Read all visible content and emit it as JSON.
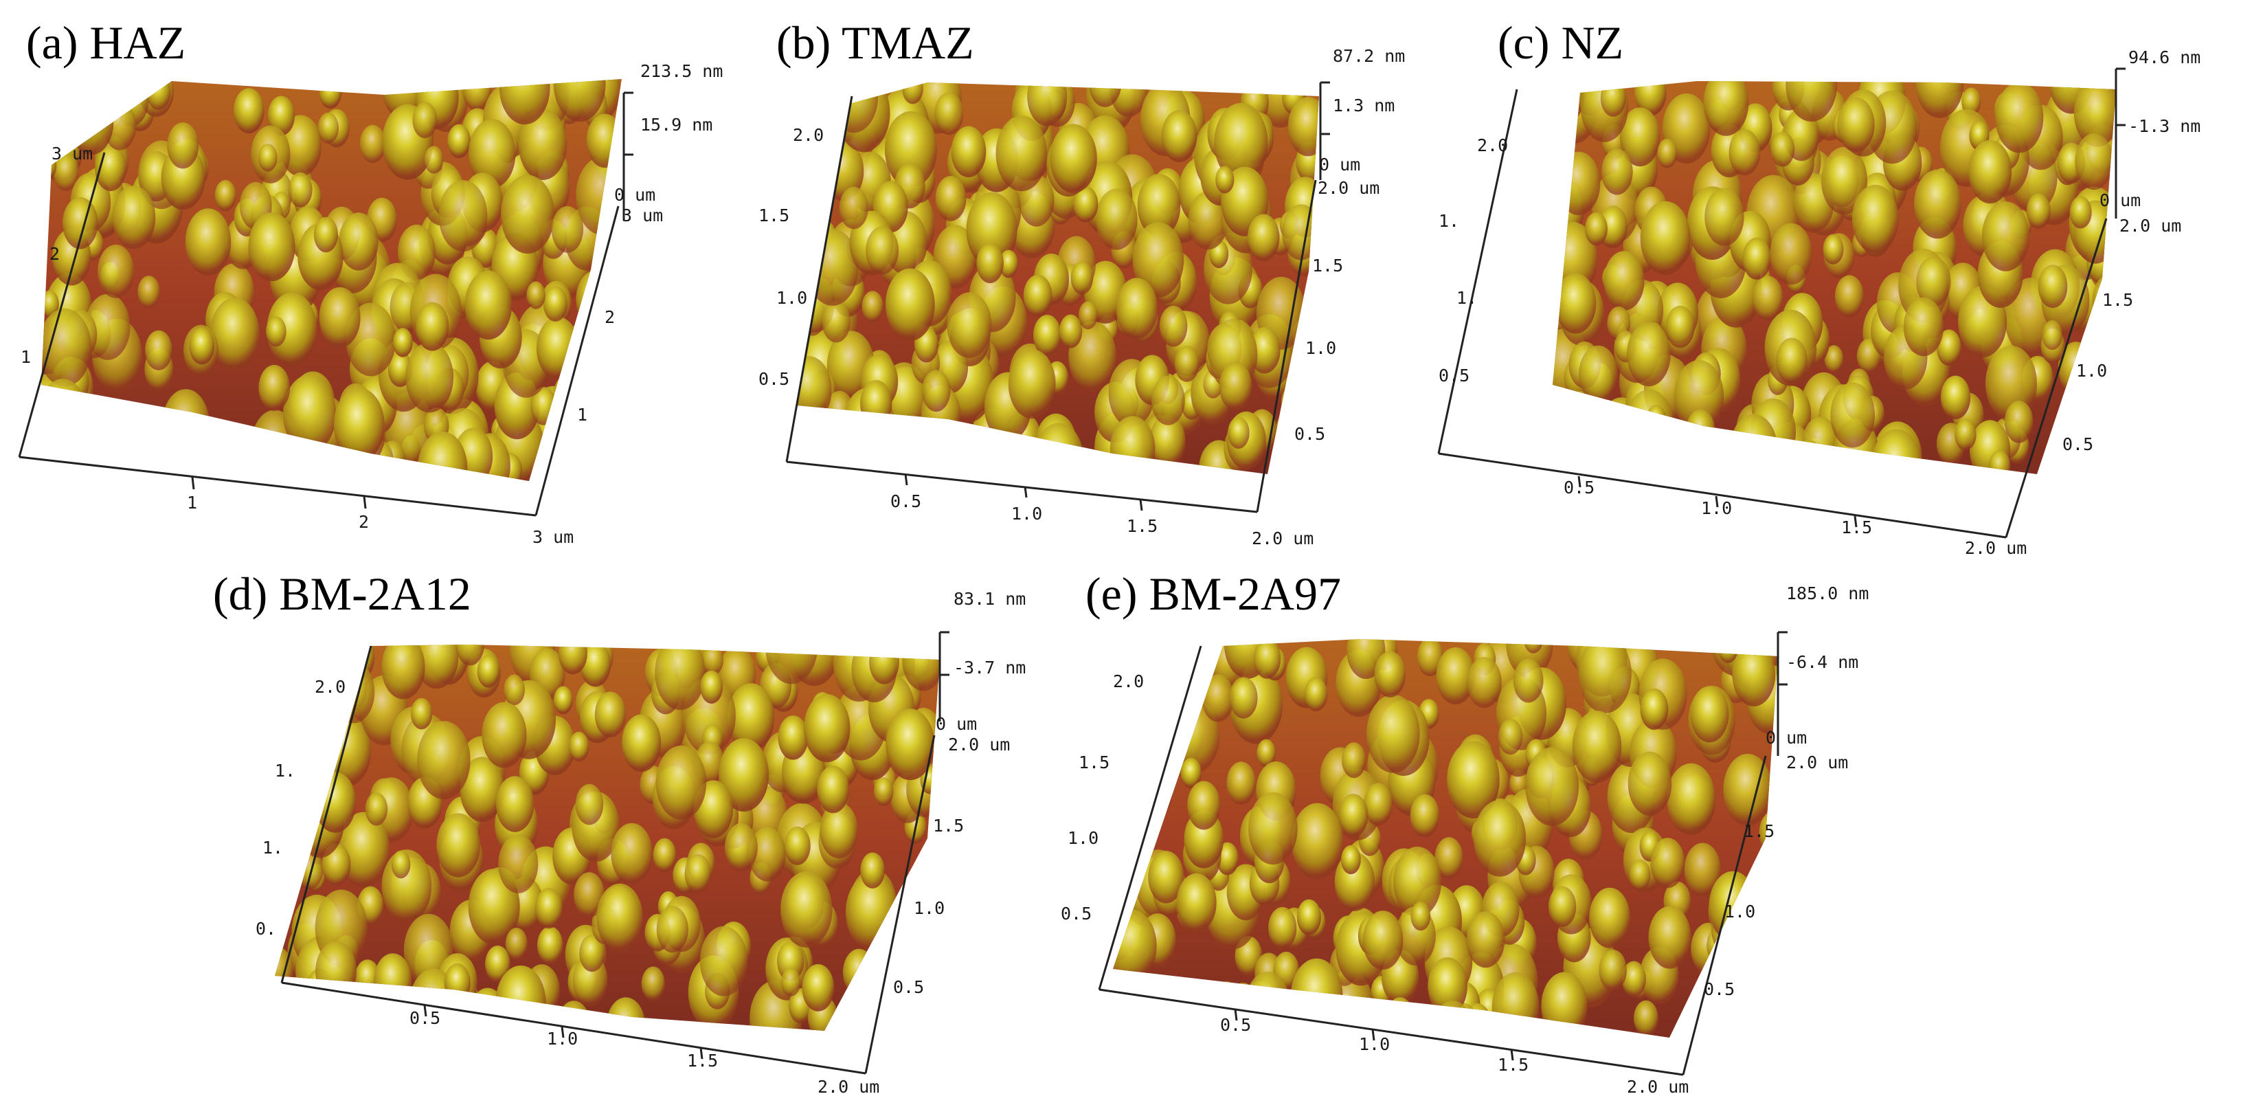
{
  "figure": {
    "panels": [
      {
        "id": "a",
        "label": "(a) HAZ",
        "z_max": "213.5 nm",
        "z_mid": "15.9 nm",
        "z_min": "0 um",
        "x_ticks": [
          "1",
          "2",
          "3 um"
        ],
        "y_ticks": [
          "1",
          "2",
          "3 um"
        ],
        "back_ticks": [
          "1",
          "2",
          "3 um"
        ]
      },
      {
        "id": "b",
        "label": "(b) TMAZ",
        "z_max": "87.2 nm",
        "z_mid": "1.3 nm",
        "z_min": "0 um",
        "x_ticks": [
          "0.5",
          "1.0",
          "1.5",
          "2.0 um"
        ],
        "y_ticks": [
          "0.5",
          "1.0",
          "1.5",
          "2.0 um"
        ],
        "back_ticks": [
          "0.5",
          "1.0",
          "1.5",
          "2.0"
        ]
      },
      {
        "id": "c",
        "label": "(c) NZ",
        "z_max": "94.6 nm",
        "z_mid": "-1.3 nm",
        "z_min": "0 um",
        "x_ticks": [
          "0.5",
          "1.0",
          "1.5",
          "2.0 um"
        ],
        "y_ticks": [
          "0.5",
          "1.0",
          "1.5",
          "2.0 um"
        ],
        "back_ticks": [
          "0.5",
          "1.",
          "1.",
          "2.0"
        ]
      },
      {
        "id": "d",
        "label": "(d) BM-2A12",
        "z_max": "83.1 nm",
        "z_mid": "-3.7 nm",
        "z_min": "0 um",
        "x_ticks": [
          "0.5",
          "1.0",
          "1.5",
          "2.0 um"
        ],
        "y_ticks": [
          "0.5",
          "1.0",
          "1.5",
          "2.0 um"
        ],
        "back_ticks": [
          "0.",
          "1.",
          "1.",
          "2.0"
        ]
      },
      {
        "id": "e",
        "label": "(e) BM-2A97",
        "z_max": "185.0 nm",
        "z_mid": "-6.4 nm",
        "z_min": "0 um",
        "x_ticks": [
          "0.5",
          "1.0",
          "1.5",
          "2.0 um"
        ],
        "y_ticks": [
          "0.5",
          "1.0",
          "1.5",
          "2.0 um"
        ],
        "back_ticks": [
          "0.5",
          "1.0",
          "1.5",
          "2.0"
        ]
      }
    ]
  }
}
